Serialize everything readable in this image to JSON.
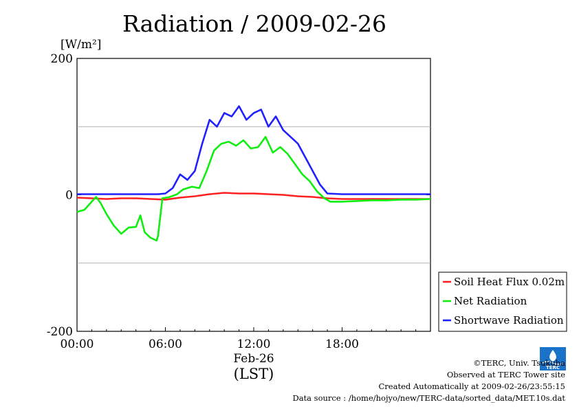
{
  "chart_data": {
    "type": "line",
    "title": "Radiation / 2009-02-26",
    "ylabel": "[W/m²]",
    "xlabel": "(LST)",
    "date_label": "Feb-26",
    "xlim": [
      0,
      24
    ],
    "ylim": [
      -200,
      200
    ],
    "x_ticks": [
      {
        "value": 0,
        "label": "00:00"
      },
      {
        "value": 6,
        "label": "06:00"
      },
      {
        "value": 12,
        "label": "12:00"
      },
      {
        "value": 18,
        "label": "18:00"
      }
    ],
    "y_ticks": [
      {
        "value": 200,
        "label": "200"
      },
      {
        "value": 0,
        "label": "0"
      },
      {
        "value": -200,
        "label": "-200"
      }
    ],
    "gridlines_y": [
      100,
      -100
    ],
    "legend_position": "bottom-right, outside",
    "series": [
      {
        "name": "Soil Heat Flux 0.02m",
        "color": "#ff2020",
        "x": [
          0,
          1,
          2,
          3,
          4,
          5,
          6,
          7,
          8,
          9,
          10,
          11,
          12,
          13,
          14,
          15,
          16,
          17,
          18,
          19,
          20,
          21,
          22,
          23,
          24
        ],
        "y": [
          -4,
          -5,
          -6,
          -5,
          -5,
          -6,
          -7,
          -4,
          -2,
          1,
          3,
          2,
          2,
          1,
          0,
          -2,
          -3,
          -5,
          -6,
          -6,
          -6,
          -6,
          -6,
          -6,
          -6
        ]
      },
      {
        "name": "Net Radiation",
        "color": "#10ee10",
        "x": [
          0,
          0.5,
          1,
          1.3,
          1.6,
          2,
          2.5,
          3,
          3.5,
          4,
          4.3,
          4.6,
          5,
          5.4,
          5.5,
          5.8,
          6.3,
          6.8,
          7.2,
          7.8,
          8.3,
          8.8,
          9.3,
          9.8,
          10.3,
          10.8,
          11.3,
          11.8,
          12.3,
          12.8,
          13.3,
          13.8,
          14.3,
          14.8,
          15.3,
          15.8,
          16.3,
          16.8,
          17.2,
          18,
          19,
          20,
          21,
          22,
          23,
          24
        ],
        "y": [
          -25,
          -22,
          -10,
          -3,
          -12,
          -28,
          -45,
          -57,
          -48,
          -47,
          -30,
          -55,
          -63,
          -67,
          -60,
          -5,
          -3,
          1,
          8,
          12,
          10,
          35,
          65,
          75,
          78,
          72,
          80,
          68,
          70,
          85,
          62,
          70,
          60,
          45,
          30,
          20,
          5,
          -5,
          -10,
          -10,
          -9,
          -8,
          -8,
          -7,
          -7,
          -6
        ]
      },
      {
        "name": "Shortwave Radiation",
        "color": "#2020ff",
        "x": [
          0,
          3,
          5.5,
          6,
          6.5,
          7,
          7.5,
          8,
          8.5,
          9,
          9.5,
          10,
          10.5,
          11,
          11.5,
          12,
          12.5,
          13,
          13.5,
          14,
          14.5,
          15,
          15.5,
          16,
          16.5,
          17,
          18,
          20,
          22,
          24
        ],
        "y": [
          1,
          1,
          1,
          2,
          10,
          30,
          22,
          35,
          75,
          110,
          100,
          120,
          115,
          130,
          110,
          120,
          125,
          100,
          115,
          95,
          85,
          75,
          55,
          35,
          15,
          2,
          1,
          1,
          1,
          1
        ]
      }
    ]
  },
  "footer": {
    "logo_text": "TERC",
    "copyright": "©TERC, Univ. Tsukuba",
    "observed": "Observed at TERC Tower site",
    "created": "Created Automatically at 2009-02-26/23:55:15",
    "source": "Data source : /home/hojyo/new/TERC-data/sorted_data/MET.10s.dat"
  }
}
